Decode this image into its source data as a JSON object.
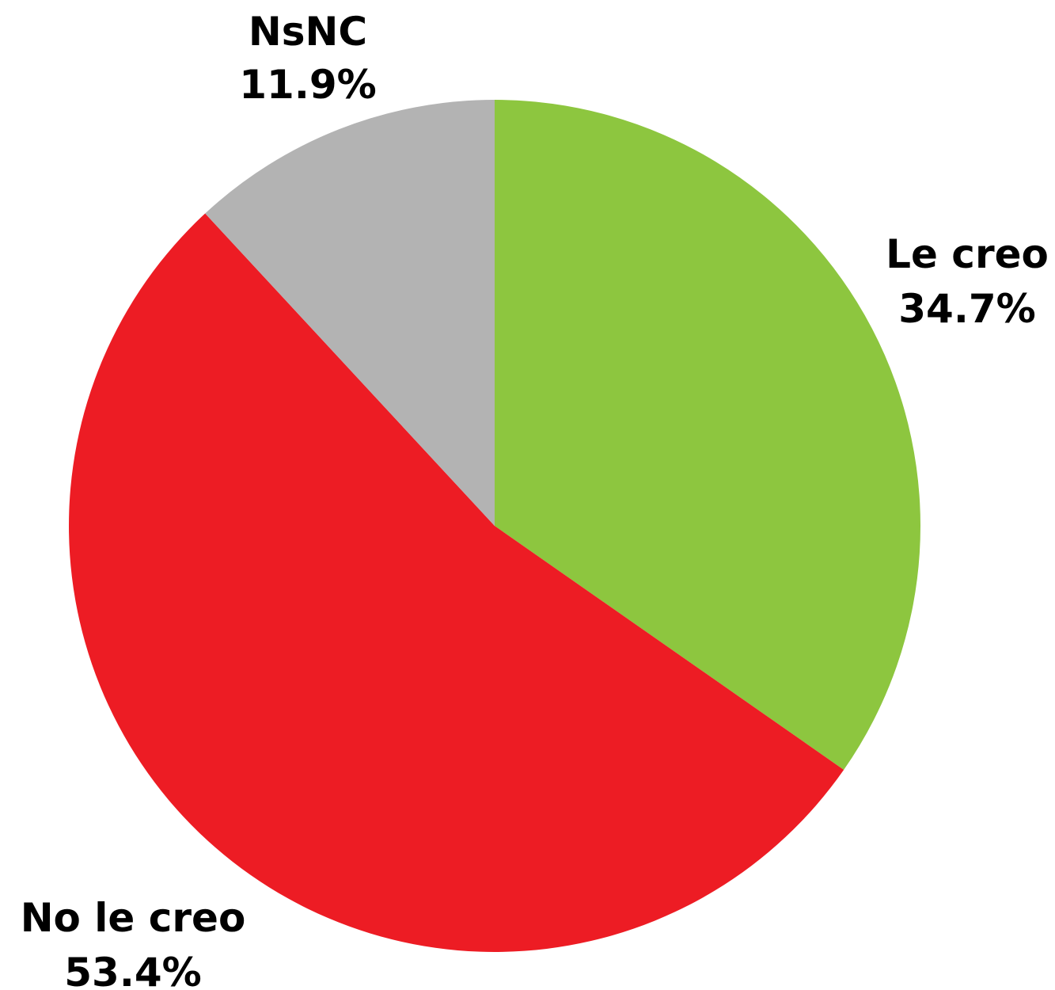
{
  "chart_data": {
    "type": "pie",
    "slices": [
      {
        "label": "Le creo",
        "value": 34.7,
        "display": "34.7%",
        "color": "#8dc63f"
      },
      {
        "label": "No le creo",
        "value": 53.4,
        "display": "53.4%",
        "color": "#ed1c24"
      },
      {
        "label": "NsNC",
        "value": 11.9,
        "display": "11.9%",
        "color": "#b3b3b3"
      }
    ],
    "start_angle": "12 o'clock",
    "direction": "clockwise"
  }
}
